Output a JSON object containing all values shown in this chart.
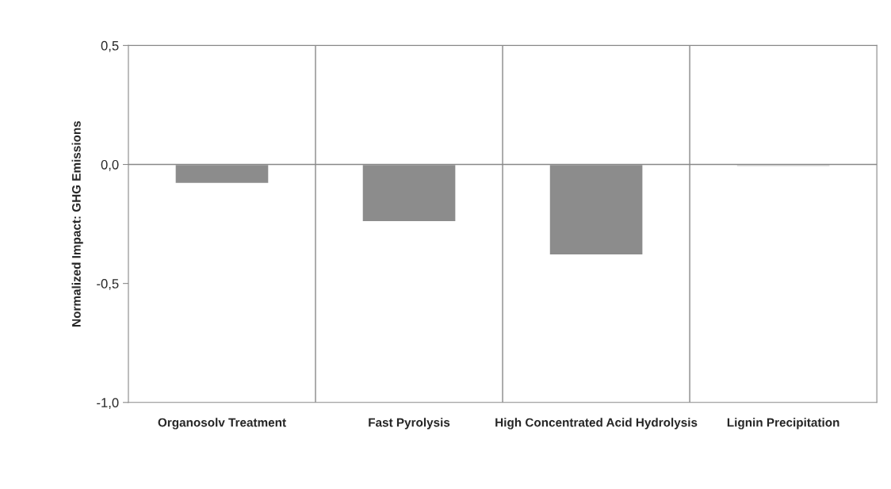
{
  "chart_data": {
    "type": "bar",
    "ylabel": "Normalized Impact: GHG Emissions",
    "categories": [
      "Organosolv Treatment",
      "Fast Pyrolysis",
      "High Concentrated Acid Hydrolysis",
      "Lignin Precipitation"
    ],
    "values": [
      -0.08,
      -0.24,
      -0.38,
      -0.01
    ],
    "colors": [
      "#8c8c8c",
      "#8c8c8c",
      "#8c8c8c",
      "#d9d9d9"
    ],
    "ylim": [
      -1.0,
      0.5
    ],
    "yticks": [
      {
        "value": -1.0,
        "label": "-1,0"
      },
      {
        "value": -0.5,
        "label": "-0,5"
      },
      {
        "value": 0.0,
        "label": "0,0"
      },
      {
        "value": 0.5,
        "label": "0,5"
      }
    ],
    "grid": "x",
    "legend": false,
    "ref_lines": [
      {
        "axis": "y",
        "value": 0,
        "color": "#888888"
      }
    ]
  }
}
